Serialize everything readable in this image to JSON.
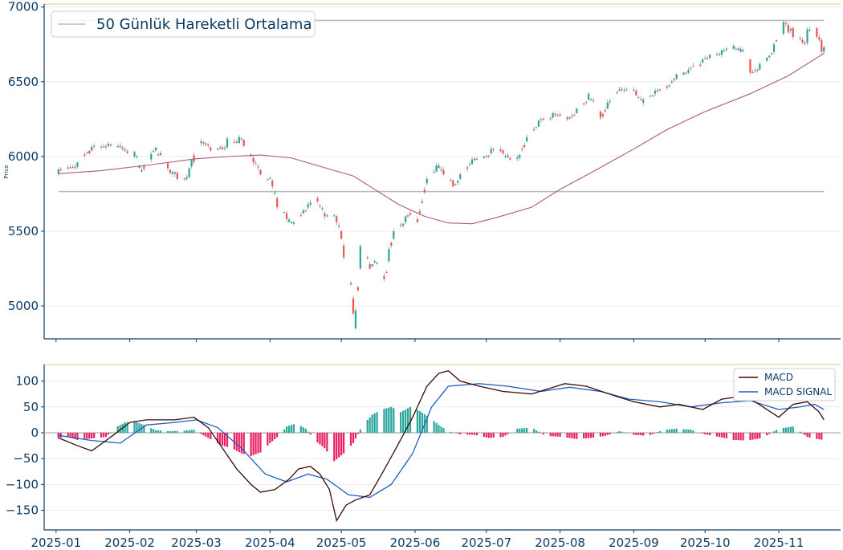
{
  "chart_data": [
    {
      "type": "candlestick",
      "ylabel": "Price",
      "ylim": [
        4780,
        7020
      ],
      "yticks": [
        5000,
        5500,
        6000,
        6500,
        7000
      ],
      "legend": {
        "placement": "top-left",
        "entries": [
          {
            "label": "50 Günlük Hareketli Ortalama",
            "color": "#bbbbbb"
          }
        ]
      },
      "hlines": [
        {
          "value": 6910,
          "color": "#bbbbbb"
        },
        {
          "value": 5765,
          "color": "#bbbbbb"
        }
      ],
      "colors": {
        "up": "#26a69a",
        "down": "#ef5350",
        "ma": "#a85a79",
        "axis": "#0d3b66"
      },
      "candle_anchors": [
        [
          "2025-01-02",
          5885,
          5915
        ],
        [
          "2025-01-10",
          5930,
          5960
        ],
        [
          "2025-01-16",
          6040,
          6065
        ],
        [
          "2025-01-23",
          6070,
          6085
        ],
        [
          "2025-01-29",
          6060,
          6050
        ],
        [
          "2025-02-03",
          6000,
          6030
        ],
        [
          "2025-02-06",
          5900,
          5910
        ],
        [
          "2025-02-12",
          6040,
          6060
        ],
        [
          "2025-02-18",
          5910,
          5890
        ],
        [
          "2025-02-21",
          5890,
          5850
        ],
        [
          "2025-02-26",
          5860,
          5920
        ],
        [
          "2025-03-03",
          6090,
          6100
        ],
        [
          "2025-03-07",
          6060,
          6040
        ],
        [
          "2025-03-14",
          6060,
          6120
        ],
        [
          "2025-03-19",
          6090,
          6130
        ],
        [
          "2025-03-21",
          6110,
          6070
        ],
        [
          "2025-03-25",
          5990,
          5960
        ],
        [
          "2025-03-28",
          5910,
          5880
        ],
        [
          "2025-04-02",
          5840,
          5800
        ],
        [
          "2025-04-04",
          5720,
          5660
        ],
        [
          "2025-04-08",
          5620,
          5580
        ],
        [
          "2025-04-11",
          5550,
          5560
        ],
        [
          "2025-04-15",
          5620,
          5640
        ],
        [
          "2025-04-21",
          5720,
          5700
        ],
        [
          "2025-04-24",
          5620,
          5600
        ],
        [
          "2025-04-29",
          5600,
          5560
        ],
        [
          "2025-05-01",
          5500,
          5450
        ],
        [
          "2025-05-06",
          5050,
          4950
        ],
        [
          "2025-05-07",
          4850,
          4970
        ],
        [
          "2025-05-09",
          5250,
          5400
        ],
        [
          "2025-05-13",
          5280,
          5250
        ],
        [
          "2025-05-15",
          5290,
          5300
        ],
        [
          "2025-05-19",
          5200,
          5180
        ],
        [
          "2025-05-21",
          5300,
          5380
        ],
        [
          "2025-05-23",
          5450,
          5500
        ],
        [
          "2025-05-28",
          5560,
          5600
        ],
        [
          "2025-05-30",
          5620,
          5610
        ],
        [
          "2025-06-02",
          5580,
          5560
        ],
        [
          "2025-06-04",
          5690,
          5700
        ],
        [
          "2025-06-06",
          5820,
          5850
        ],
        [
          "2025-06-10",
          5900,
          5940
        ],
        [
          "2025-06-13",
          5910,
          5880
        ],
        [
          "2025-06-17",
          5840,
          5800
        ],
        [
          "2025-06-20",
          5850,
          5880
        ],
        [
          "2025-06-25",
          5950,
          5980
        ],
        [
          "2025-06-30",
          5990,
          6000
        ],
        [
          "2025-07-03",
          6020,
          6050
        ],
        [
          "2025-07-08",
          6040,
          6020
        ],
        [
          "2025-07-11",
          5990,
          5980
        ],
        [
          "2025-07-15",
          5990,
          6010
        ],
        [
          "2025-07-18",
          6100,
          6130
        ],
        [
          "2025-07-23",
          6200,
          6240
        ],
        [
          "2025-07-29",
          6260,
          6290
        ],
        [
          "2025-08-04",
          6260,
          6250
        ],
        [
          "2025-08-08",
          6290,
          6320
        ],
        [
          "2025-08-13",
          6380,
          6420
        ],
        [
          "2025-08-18",
          6300,
          6260
        ],
        [
          "2025-08-21",
          6320,
          6360
        ],
        [
          "2025-08-26",
          6440,
          6450
        ],
        [
          "2025-09-02",
          6440,
          6410
        ],
        [
          "2025-09-05",
          6360,
          6380
        ],
        [
          "2025-09-10",
          6420,
          6440
        ],
        [
          "2025-09-15",
          6470,
          6460
        ],
        [
          "2025-09-19",
          6520,
          6550
        ],
        [
          "2025-09-24",
          6560,
          6580
        ],
        [
          "2025-09-30",
          6630,
          6650
        ],
        [
          "2025-10-03",
          6660,
          6680
        ],
        [
          "2025-10-08",
          6680,
          6710
        ],
        [
          "2025-10-13",
          6720,
          6740
        ],
        [
          "2025-10-16",
          6700,
          6720
        ],
        [
          "2025-10-20",
          6650,
          6560
        ],
        [
          "2025-10-24",
          6580,
          6620
        ],
        [
          "2025-10-27",
          6640,
          6660
        ],
        [
          "2025-10-30",
          6700,
          6750
        ],
        [
          "2025-11-03",
          6820,
          6900
        ],
        [
          "2025-11-05",
          6880,
          6830
        ],
        [
          "2025-11-07",
          6860,
          6800
        ],
        [
          "2025-11-11",
          6780,
          6760
        ],
        [
          "2025-11-13",
          6760,
          6850
        ],
        [
          "2025-11-17",
          6860,
          6800
        ],
        [
          "2025-11-19",
          6780,
          6700
        ],
        [
          "2025-11-20",
          6700,
          6730
        ]
      ],
      "ma_points": [
        [
          "2025-01-02",
          5885
        ],
        [
          "2025-01-20",
          5905
        ],
        [
          "2025-02-10",
          5945
        ],
        [
          "2025-03-01",
          5985
        ],
        [
          "2025-03-15",
          6000
        ],
        [
          "2025-03-28",
          6010
        ],
        [
          "2025-04-10",
          5990
        ],
        [
          "2025-04-25",
          5920
        ],
        [
          "2025-05-06",
          5870
        ],
        [
          "2025-05-15",
          5780
        ],
        [
          "2025-05-25",
          5680
        ],
        [
          "2025-06-05",
          5600
        ],
        [
          "2025-06-15",
          5555
        ],
        [
          "2025-06-25",
          5550
        ],
        [
          "2025-07-05",
          5590
        ],
        [
          "2025-07-20",
          5660
        ],
        [
          "2025-08-01",
          5780
        ],
        [
          "2025-08-15",
          5900
        ],
        [
          "2025-09-01",
          6050
        ],
        [
          "2025-09-15",
          6180
        ],
        [
          "2025-10-01",
          6300
        ],
        [
          "2025-10-20",
          6420
        ],
        [
          "2025-11-05",
          6540
        ],
        [
          "2025-11-20",
          6690
        ]
      ]
    },
    {
      "type": "macd",
      "ylim": [
        -188,
        132
      ],
      "yticks": [
        100,
        50,
        0,
        -50,
        -100,
        -150
      ],
      "xlim": [
        "2024-12-27",
        "2025-11-27"
      ],
      "xticks": [
        "2025-01",
        "2025-02",
        "2025-03",
        "2025-04",
        "2025-05",
        "2025-06",
        "2025-07",
        "2025-08",
        "2025-09",
        "2025-10",
        "2025-11"
      ],
      "legend": {
        "placement": "top-right",
        "entries": [
          {
            "label": "MACD",
            "color": "#3b0a0a"
          },
          {
            "label": "MACD SIGNAL",
            "color": "#1f5fbf"
          }
        ]
      },
      "colors": {
        "macd": "#3b0a0a",
        "signal": "#1f5fbf",
        "hist_pos": "#26a69a",
        "hist_neg": "#e91e63"
      },
      "macd_points": [
        [
          "2025-01-02",
          -10
        ],
        [
          "2025-01-10",
          -25
        ],
        [
          "2025-01-16",
          -35
        ],
        [
          "2025-01-25",
          -5
        ],
        [
          "2025-02-01",
          20
        ],
        [
          "2025-02-08",
          25
        ],
        [
          "2025-02-20",
          25
        ],
        [
          "2025-02-28",
          30
        ],
        [
          "2025-03-06",
          10
        ],
        [
          "2025-03-12",
          -30
        ],
        [
          "2025-03-18",
          -70
        ],
        [
          "2025-03-24",
          -100
        ],
        [
          "2025-03-28",
          -115
        ],
        [
          "2025-04-03",
          -110
        ],
        [
          "2025-04-09",
          -90
        ],
        [
          "2025-04-13",
          -70
        ],
        [
          "2025-04-18",
          -65
        ],
        [
          "2025-04-22",
          -80
        ],
        [
          "2025-04-26",
          -110
        ],
        [
          "2025-04-29",
          -170
        ],
        [
          "2025-05-03",
          -140
        ],
        [
          "2025-05-07",
          -130
        ],
        [
          "2025-05-13",
          -120
        ],
        [
          "2025-05-18",
          -80
        ],
        [
          "2025-05-24",
          -30
        ],
        [
          "2025-05-31",
          30
        ],
        [
          "2025-06-06",
          90
        ],
        [
          "2025-06-11",
          115
        ],
        [
          "2025-06-15",
          120
        ],
        [
          "2025-06-20",
          100
        ],
        [
          "2025-06-28",
          90
        ],
        [
          "2025-07-08",
          80
        ],
        [
          "2025-07-20",
          75
        ],
        [
          "2025-07-27",
          85
        ],
        [
          "2025-08-03",
          95
        ],
        [
          "2025-08-12",
          90
        ],
        [
          "2025-08-25",
          70
        ],
        [
          "2025-09-01",
          60
        ],
        [
          "2025-09-12",
          50
        ],
        [
          "2025-09-20",
          55
        ],
        [
          "2025-09-30",
          45
        ],
        [
          "2025-10-08",
          65
        ],
        [
          "2025-10-16",
          70
        ],
        [
          "2025-10-22",
          60
        ],
        [
          "2025-11-01",
          30
        ],
        [
          "2025-11-07",
          55
        ],
        [
          "2025-11-13",
          60
        ],
        [
          "2025-11-18",
          40
        ],
        [
          "2025-11-20",
          25
        ]
      ],
      "signal_points": [
        [
          "2025-01-02",
          -5
        ],
        [
          "2025-01-16",
          -15
        ],
        [
          "2025-01-28",
          -20
        ],
        [
          "2025-02-08",
          15
        ],
        [
          "2025-02-20",
          20
        ],
        [
          "2025-03-01",
          25
        ],
        [
          "2025-03-10",
          10
        ],
        [
          "2025-03-20",
          -30
        ],
        [
          "2025-03-30",
          -80
        ],
        [
          "2025-04-08",
          -95
        ],
        [
          "2025-04-17",
          -80
        ],
        [
          "2025-04-25",
          -90
        ],
        [
          "2025-05-04",
          -120
        ],
        [
          "2025-05-13",
          -125
        ],
        [
          "2025-05-22",
          -100
        ],
        [
          "2025-05-31",
          -40
        ],
        [
          "2025-06-08",
          50
        ],
        [
          "2025-06-15",
          90
        ],
        [
          "2025-06-28",
          95
        ],
        [
          "2025-07-10",
          90
        ],
        [
          "2025-07-24",
          80
        ],
        [
          "2025-08-05",
          88
        ],
        [
          "2025-08-18",
          80
        ],
        [
          "2025-08-30",
          65
        ],
        [
          "2025-09-12",
          60
        ],
        [
          "2025-09-25",
          50
        ],
        [
          "2025-10-08",
          58
        ],
        [
          "2025-10-20",
          62
        ],
        [
          "2025-11-01",
          45
        ],
        [
          "2025-11-10",
          50
        ],
        [
          "2025-11-16",
          55
        ],
        [
          "2025-11-20",
          45
        ]
      ],
      "histogram": [
        [
          "2025-01-02",
          -10
        ],
        [
          "2025-01-06",
          -8
        ],
        [
          "2025-01-10",
          -14
        ],
        [
          "2025-01-14",
          -12
        ],
        [
          "2025-01-18",
          -10
        ],
        [
          "2025-01-22",
          -8
        ],
        [
          "2025-01-26",
          10
        ],
        [
          "2025-01-30",
          20
        ],
        [
          "2025-02-03",
          22
        ],
        [
          "2025-02-07",
          15
        ],
        [
          "2025-02-12",
          5
        ],
        [
          "2025-02-18",
          3
        ],
        [
          "2025-02-24",
          4
        ],
        [
          "2025-02-28",
          6
        ],
        [
          "2025-03-04",
          -5
        ],
        [
          "2025-03-08",
          -15
        ],
        [
          "2025-03-12",
          -25
        ],
        [
          "2025-03-16",
          -30
        ],
        [
          "2025-03-20",
          -40
        ],
        [
          "2025-03-24",
          -45
        ],
        [
          "2025-03-28",
          -38
        ],
        [
          "2025-04-01",
          -20
        ],
        [
          "2025-04-05",
          -5
        ],
        [
          "2025-04-08",
          12
        ],
        [
          "2025-04-12",
          18
        ],
        [
          "2025-04-16",
          8
        ],
        [
          "2025-04-20",
          -15
        ],
        [
          "2025-04-24",
          -30
        ],
        [
          "2025-04-28",
          -55
        ],
        [
          "2025-05-02",
          -40
        ],
        [
          "2025-05-06",
          -20
        ],
        [
          "2025-05-10",
          15
        ],
        [
          "2025-05-14",
          35
        ],
        [
          "2025-05-18",
          45
        ],
        [
          "2025-05-22",
          50
        ],
        [
          "2025-05-26",
          40
        ],
        [
          "2025-05-30",
          50
        ],
        [
          "2025-06-03",
          42
        ],
        [
          "2025-06-07",
          30
        ],
        [
          "2025-06-11",
          15
        ],
        [
          "2025-06-15",
          3
        ],
        [
          "2025-06-20",
          -3
        ],
        [
          "2025-06-26",
          -4
        ],
        [
          "2025-07-02",
          -10
        ],
        [
          "2025-07-08",
          -8
        ],
        [
          "2025-07-14",
          8
        ],
        [
          "2025-07-20",
          10
        ],
        [
          "2025-07-26",
          -6
        ],
        [
          "2025-08-02",
          -8
        ],
        [
          "2025-08-08",
          -12
        ],
        [
          "2025-08-14",
          -10
        ],
        [
          "2025-08-20",
          -6
        ],
        [
          "2025-08-26",
          3
        ],
        [
          "2025-09-01",
          -4
        ],
        [
          "2025-09-07",
          -6
        ],
        [
          "2025-09-13",
          5
        ],
        [
          "2025-09-19",
          8
        ],
        [
          "2025-09-25",
          6
        ],
        [
          "2025-10-01",
          -3
        ],
        [
          "2025-10-07",
          -8
        ],
        [
          "2025-10-13",
          -14
        ],
        [
          "2025-10-19",
          -15
        ],
        [
          "2025-10-25",
          -10
        ],
        [
          "2025-11-01",
          8
        ],
        [
          "2025-11-07",
          12
        ],
        [
          "2025-11-13",
          -8
        ],
        [
          "2025-11-17",
          -12
        ],
        [
          "2025-11-20",
          -14
        ]
      ]
    }
  ]
}
